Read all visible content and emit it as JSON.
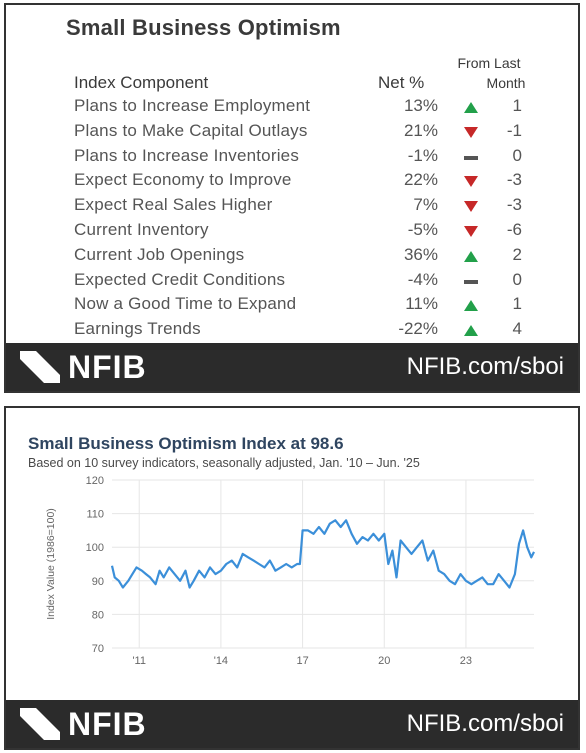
{
  "top_panel": {
    "title": "Small Business Optimism",
    "headers": {
      "component": "Index Component",
      "net": "Net %",
      "from": "From Last",
      "month": "Month"
    },
    "rows": [
      {
        "label": "Plans to Increase Employment",
        "net": "13%",
        "direction": "up",
        "change": "1"
      },
      {
        "label": "Plans to Make Capital Outlays",
        "net": "21%",
        "direction": "down",
        "change": "-1"
      },
      {
        "label": "Plans to Increase Inventories",
        "net": "-1%",
        "direction": "flat",
        "change": "0"
      },
      {
        "label": "Expect Economy to Improve",
        "net": "22%",
        "direction": "down",
        "change": "-3"
      },
      {
        "label": "Expect Real Sales Higher",
        "net": "7%",
        "direction": "down",
        "change": "-3"
      },
      {
        "label": "Current Inventory",
        "net": "-5%",
        "direction": "down",
        "change": "-6"
      },
      {
        "label": "Current Job Openings",
        "net": "36%",
        "direction": "up",
        "change": "2"
      },
      {
        "label": "Expected Credit Conditions",
        "net": "-4%",
        "direction": "flat",
        "change": "0"
      },
      {
        "label": "Now a Good Time to Expand",
        "net": "11%",
        "direction": "up",
        "change": "1"
      },
      {
        "label": "Earnings Trends",
        "net": "-22%",
        "direction": "up",
        "change": "4"
      }
    ]
  },
  "footer": {
    "logo": "NFIB",
    "url": "NFIB.com/sboi"
  },
  "colors": {
    "up": "#22a04a",
    "down": "#c62828",
    "flat": "#555555",
    "line": "#3b8fd9",
    "footer_bg": "#2b2b2b"
  },
  "chart_data": {
    "type": "line",
    "title": "Small Business Optimism Index at 98.6",
    "subtitle": "Based on 10 survey indicators, seasonally adjusted,  Jan. '10 – Jun. '25",
    "ylabel": "Index Value (1986=100)",
    "xlabel": "",
    "ylim": [
      70,
      120
    ],
    "yticks": [
      70,
      80,
      90,
      100,
      110,
      120
    ],
    "xlim": [
      2010.0,
      2025.5
    ],
    "xticks": [
      {
        "label": "'11",
        "x": 2011
      },
      {
        "label": "'14",
        "x": 2014
      },
      {
        "label": "17",
        "x": 2017
      },
      {
        "label": "20",
        "x": 2020
      },
      {
        "label": "23",
        "x": 2023
      }
    ],
    "grid": true,
    "series": [
      {
        "values_x": [
          2010.0,
          2010.1,
          2010.25,
          2010.4,
          2010.6,
          2010.75,
          2010.9,
          2011.1,
          2011.25,
          2011.4,
          2011.6,
          2011.75,
          2011.9,
          2012.1,
          2012.3,
          2012.5,
          2012.7,
          2012.85,
          2013.0,
          2013.2,
          2013.4,
          2013.6,
          2013.8,
          2014.0,
          2014.2,
          2014.4,
          2014.6,
          2014.8,
          2015.0,
          2015.2,
          2015.4,
          2015.6,
          2015.8,
          2016.0,
          2016.2,
          2016.4,
          2016.6,
          2016.8,
          2016.9,
          2017.0,
          2017.2,
          2017.4,
          2017.6,
          2017.8,
          2018.0,
          2018.2,
          2018.4,
          2018.6,
          2018.8,
          2019.0,
          2019.2,
          2019.4,
          2019.6,
          2019.8,
          2020.0,
          2020.15,
          2020.3,
          2020.45,
          2020.6,
          2020.8,
          2021.0,
          2021.2,
          2021.4,
          2021.6,
          2021.8,
          2022.0,
          2022.2,
          2022.4,
          2022.6,
          2022.8,
          2023.0,
          2023.2,
          2023.4,
          2023.6,
          2023.8,
          2024.0,
          2024.2,
          2024.4,
          2024.6,
          2024.8,
          2024.95,
          2025.1,
          2025.25,
          2025.4,
          2025.5
        ],
        "values_y": [
          94.5,
          91,
          90,
          88,
          90,
          92,
          94,
          93,
          92,
          91,
          89,
          93,
          91,
          94,
          92,
          90,
          93,
          88,
          90,
          93,
          91,
          94,
          92,
          93,
          95,
          96,
          94,
          98,
          97,
          96,
          95,
          94,
          96,
          93,
          94,
          95,
          94,
          95,
          95,
          105,
          105,
          104,
          106,
          104,
          107,
          108,
          106,
          108,
          104,
          101,
          103,
          102,
          104,
          102,
          104,
          95,
          99,
          91,
          102,
          100,
          98,
          100,
          102,
          96,
          99,
          93,
          92,
          90,
          89,
          92,
          90,
          89,
          90,
          91,
          89,
          89,
          92,
          90,
          88,
          92,
          101,
          105,
          100,
          97,
          98.6
        ]
      }
    ],
    "current_value": 98.6
  }
}
